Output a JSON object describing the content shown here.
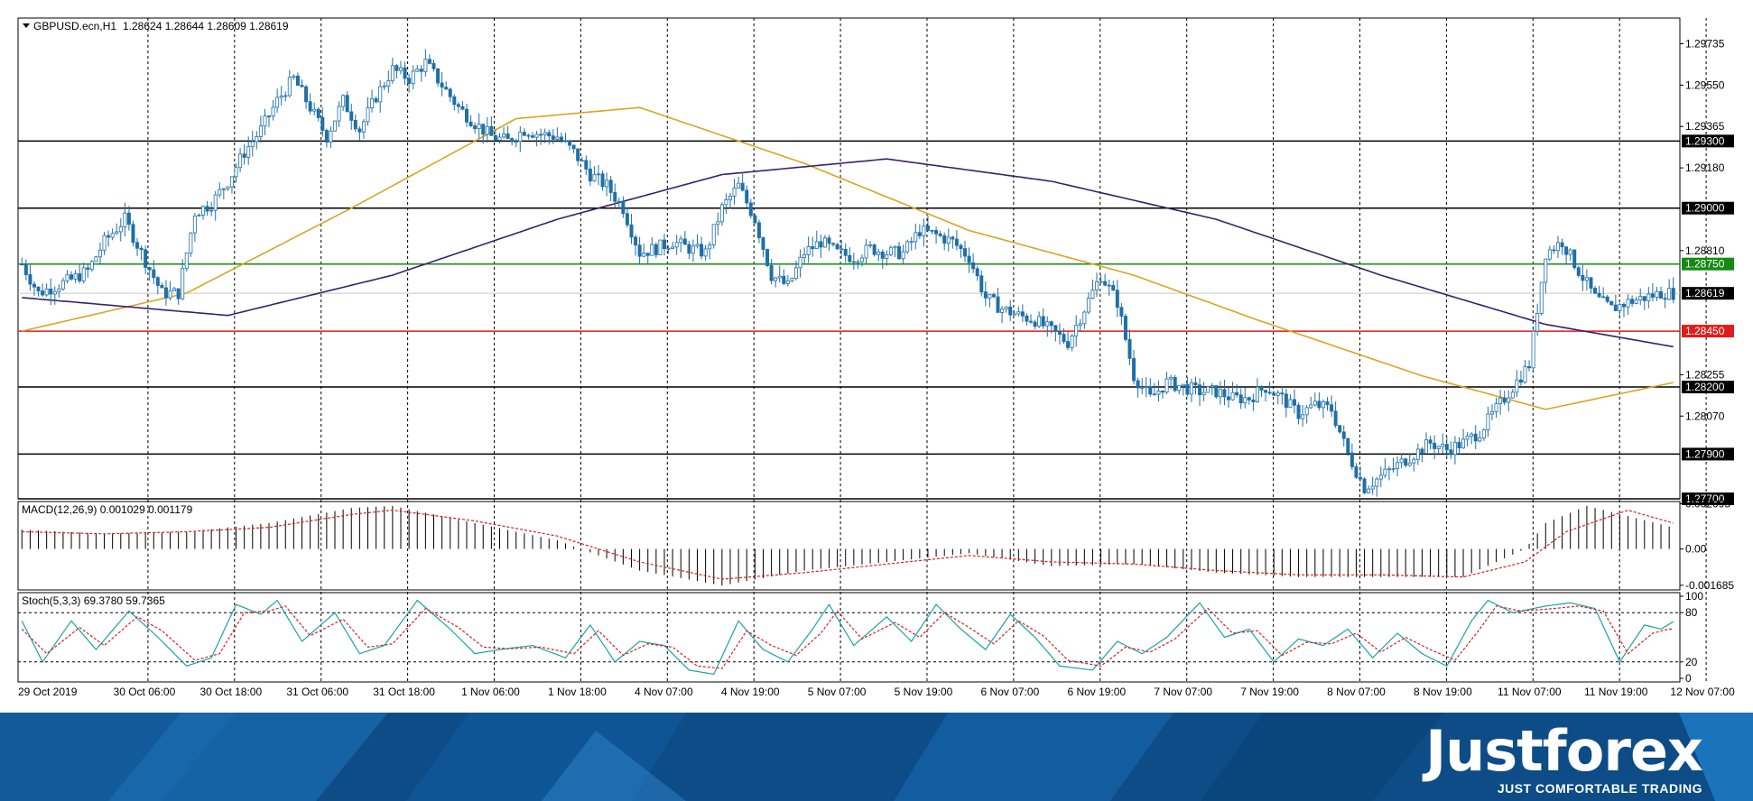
{
  "symbol_header": {
    "symbol": "GBPUSD.ecn,H1",
    "ohlc": "1.28624 1.28644 1.28609 1.28619"
  },
  "macd_header": "MACD(12,26,9) 0.001029 0.001179",
  "stoch_header": "Stoch(5,3,3) 69.3780 59.7365",
  "brand": {
    "name": "Justforex",
    "tagline": "JUST COMFORTABLE TRADING"
  },
  "colors": {
    "bull": "#ffffff",
    "bear": "#1f6fa8",
    "ma_fast": "#d9a521",
    "ma_slow": "#3b1f6e",
    "green_level": "#138a13",
    "red_level": "#e11b1b",
    "black_level": "#000000",
    "banner": "#0d4c86"
  },
  "chart_data": [
    {
      "type": "candlestick",
      "title": "GBPUSD.ecn,H1",
      "price_ticks": [
        "1.29735",
        "1.29550",
        "1.29365",
        "1.29180",
        "1.28810",
        "1.28255",
        "1.28070"
      ],
      "level_tags": [
        "1.29300",
        "1.29000",
        "1.28750",
        "1.28619",
        "1.28450",
        "1.28200",
        "1.27900",
        "1.27700"
      ],
      "ylim": [
        1.277,
        1.2985
      ],
      "x_ticks": [
        "29 Oct 2019",
        "30 Oct 06:00",
        "30 Oct 18:00",
        "31 Oct 06:00",
        "31 Oct 18:00",
        "1 Nov 06:00",
        "1 Nov 18:00",
        "4 Nov 07:00",
        "4 Nov 19:00",
        "5 Nov 07:00",
        "5 Nov 19:00",
        "6 Nov 07:00",
        "6 Nov 19:00",
        "7 Nov 07:00",
        "7 Nov 19:00",
        "8 Nov 07:00",
        "8 Nov 19:00",
        "11 Nov 07:00",
        "11 Nov 19:00",
        "12 Nov 07:00"
      ],
      "horizontal_levels": [
        {
          "price": 1.293,
          "color": "black"
        },
        {
          "price": 1.29,
          "color": "black"
        },
        {
          "price": 1.2875,
          "color": "green"
        },
        {
          "price": 1.2845,
          "color": "red"
        },
        {
          "price": 1.282,
          "color": "black"
        },
        {
          "price": 1.279,
          "color": "black"
        },
        {
          "price": 1.277,
          "color": "black"
        }
      ],
      "current_price": 1.28619,
      "close_path": [
        [
          0,
          1.2875
        ],
        [
          4,
          1.2862
        ],
        [
          8,
          1.2865
        ],
        [
          12,
          1.2868
        ],
        [
          16,
          1.2872
        ],
        [
          20,
          1.2885
        ],
        [
          25,
          1.2895
        ],
        [
          29,
          1.288
        ],
        [
          34,
          1.2862
        ],
        [
          38,
          1.2862
        ],
        [
          42,
          1.2898
        ],
        [
          46,
          1.2902
        ],
        [
          50,
          1.2912
        ],
        [
          54,
          1.2925
        ],
        [
          58,
          1.2935
        ],
        [
          62,
          1.2948
        ],
        [
          66,
          1.2958
        ],
        [
          70,
          1.2945
        ],
        [
          74,
          1.2932
        ],
        [
          78,
          1.2948
        ],
        [
          82,
          1.2935
        ],
        [
          86,
          1.295
        ],
        [
          90,
          1.2962
        ],
        [
          94,
          1.2958
        ],
        [
          98,
          1.2965
        ],
        [
          102,
          1.2955
        ],
        [
          106,
          1.2945
        ],
        [
          110,
          1.2938
        ],
        [
          114,
          1.2932
        ],
        [
          118,
          1.293
        ],
        [
          122,
          1.2935
        ],
        [
          126,
          1.2933
        ],
        [
          130,
          1.2932
        ],
        [
          134,
          1.2925
        ],
        [
          138,
          1.2915
        ],
        [
          142,
          1.291
        ],
        [
          146,
          1.29
        ],
        [
          150,
          1.288
        ],
        [
          154,
          1.2882
        ],
        [
          158,
          1.2885
        ],
        [
          162,
          1.2882
        ],
        [
          166,
          1.288
        ],
        [
          170,
          1.29
        ],
        [
          174,
          1.291
        ],
        [
          178,
          1.2895
        ],
        [
          182,
          1.287
        ],
        [
          186,
          1.2865
        ],
        [
          190,
          1.288
        ],
        [
          194,
          1.2885
        ],
        [
          198,
          1.288
        ],
        [
          202,
          1.2878
        ],
        [
          206,
          1.2882
        ],
        [
          210,
          1.288
        ],
        [
          214,
          1.288
        ],
        [
          218,
          1.289
        ],
        [
          222,
          1.2888
        ],
        [
          226,
          1.2885
        ],
        [
          230,
          1.2878
        ],
        [
          234,
          1.286
        ],
        [
          238,
          1.2855
        ],
        [
          242,
          1.2852
        ],
        [
          246,
          1.285
        ],
        [
          250,
          1.2845
        ],
        [
          254,
          1.284
        ],
        [
          258,
          1.2855
        ],
        [
          262,
          1.287
        ],
        [
          266,
          1.2858
        ],
        [
          270,
          1.2825
        ],
        [
          274,
          1.2815
        ],
        [
          278,
          1.2822
        ],
        [
          282,
          1.282
        ],
        [
          286,
          1.2818
        ],
        [
          290,
          1.2818
        ],
        [
          294,
          1.2815
        ],
        [
          298,
          1.2815
        ],
        [
          302,
          1.282
        ],
        [
          306,
          1.2815
        ],
        [
          310,
          1.2808
        ],
        [
          314,
          1.2812
        ],
        [
          318,
          1.281
        ],
        [
          322,
          1.279
        ],
        [
          326,
          1.2775
        ],
        [
          330,
          1.278
        ],
        [
          334,
          1.2785
        ],
        [
          338,
          1.279
        ],
        [
          342,
          1.2795
        ],
        [
          346,
          1.2792
        ],
        [
          350,
          1.2795
        ],
        [
          354,
          1.28
        ],
        [
          358,
          1.281
        ],
        [
          362,
          1.282
        ],
        [
          366,
          1.283
        ],
        [
          370,
          1.288
        ],
        [
          374,
          1.2885
        ],
        [
          378,
          1.2872
        ],
        [
          382,
          1.286
        ],
        [
          386,
          1.2855
        ],
        [
          390,
          1.2858
        ],
        [
          394,
          1.286
        ],
        [
          398,
          1.2862
        ],
        [
          401,
          1.2862
        ]
      ],
      "ma_fast": [
        [
          0,
          1.2845
        ],
        [
          40,
          1.2862
        ],
        [
          80,
          1.29
        ],
        [
          120,
          1.294
        ],
        [
          150,
          1.2945
        ],
        [
          190,
          1.292
        ],
        [
          230,
          1.289
        ],
        [
          270,
          1.287
        ],
        [
          300,
          1.285
        ],
        [
          340,
          1.2825
        ],
        [
          370,
          1.281
        ],
        [
          401,
          1.2822
        ]
      ],
      "ma_slow": [
        [
          0,
          1.286
        ],
        [
          50,
          1.2852
        ],
        [
          90,
          1.287
        ],
        [
          130,
          1.2895
        ],
        [
          170,
          1.2915
        ],
        [
          210,
          1.2922
        ],
        [
          250,
          1.2912
        ],
        [
          290,
          1.2895
        ],
        [
          330,
          1.287
        ],
        [
          370,
          1.2848
        ],
        [
          401,
          1.2838
        ]
      ]
    },
    {
      "type": "histogram",
      "title": "MACD(12,26,9) 0.001029 0.001179",
      "ticks": [
        "0.002095",
        "0.00",
        "-0.001685"
      ],
      "ylim": [
        -0.0019,
        0.0022
      ],
      "histogram": [
        [
          0,
          0.0009
        ],
        [
          20,
          0.0007
        ],
        [
          40,
          0.0008
        ],
        [
          60,
          0.0012
        ],
        [
          80,
          0.0019
        ],
        [
          90,
          0.002
        ],
        [
          110,
          0.0012
        ],
        [
          130,
          0.0004
        ],
        [
          150,
          -0.001
        ],
        [
          170,
          -0.0017
        ],
        [
          190,
          -0.001
        ],
        [
          210,
          -0.0006
        ],
        [
          230,
          -0.0002
        ],
        [
          250,
          -0.0008
        ],
        [
          270,
          -0.0007
        ],
        [
          290,
          -0.0011
        ],
        [
          310,
          -0.0013
        ],
        [
          330,
          -0.0013
        ],
        [
          350,
          -0.0013
        ],
        [
          365,
          0.0
        ],
        [
          370,
          0.0012
        ],
        [
          380,
          0.002
        ],
        [
          401,
          0.001
        ]
      ],
      "signal": [
        [
          0,
          0.0008
        ],
        [
          20,
          0.0007
        ],
        [
          40,
          0.0008
        ],
        [
          60,
          0.001
        ],
        [
          80,
          0.0016
        ],
        [
          90,
          0.0018
        ],
        [
          110,
          0.0013
        ],
        [
          130,
          0.0006
        ],
        [
          150,
          -0.0006
        ],
        [
          170,
          -0.0014
        ],
        [
          190,
          -0.0011
        ],
        [
          210,
          -0.0007
        ],
        [
          230,
          -0.0003
        ],
        [
          250,
          -0.0006
        ],
        [
          270,
          -0.0007
        ],
        [
          290,
          -0.001
        ],
        [
          310,
          -0.0012
        ],
        [
          330,
          -0.0012
        ],
        [
          350,
          -0.0013
        ],
        [
          365,
          -0.0006
        ],
        [
          375,
          0.0008
        ],
        [
          390,
          0.0018
        ],
        [
          401,
          0.0012
        ]
      ]
    },
    {
      "type": "line",
      "title": "Stoch(5,3,3) 69.3780 59.7365",
      "ticks": [
        "100",
        "80",
        "20",
        "0"
      ],
      "ylim": [
        0,
        100
      ],
      "levels": [
        80,
        20
      ],
      "main": [
        [
          0,
          70
        ],
        [
          5,
          20
        ],
        [
          12,
          70
        ],
        [
          18,
          35
        ],
        [
          26,
          82
        ],
        [
          32,
          55
        ],
        [
          40,
          15
        ],
        [
          46,
          25
        ],
        [
          52,
          90
        ],
        [
          58,
          78
        ],
        [
          62,
          95
        ],
        [
          68,
          45
        ],
        [
          76,
          80
        ],
        [
          82,
          30
        ],
        [
          88,
          40
        ],
        [
          96,
          95
        ],
        [
          104,
          60
        ],
        [
          110,
          30
        ],
        [
          116,
          35
        ],
        [
          124,
          40
        ],
        [
          132,
          25
        ],
        [
          138,
          65
        ],
        [
          144,
          20
        ],
        [
          150,
          45
        ],
        [
          156,
          40
        ],
        [
          162,
          10
        ],
        [
          168,
          5
        ],
        [
          174,
          70
        ],
        [
          180,
          35
        ],
        [
          186,
          20
        ],
        [
          192,
          60
        ],
        [
          196,
          90
        ],
        [
          202,
          40
        ],
        [
          210,
          75
        ],
        [
          216,
          45
        ],
        [
          222,
          90
        ],
        [
          228,
          60
        ],
        [
          234,
          35
        ],
        [
          240,
          78
        ],
        [
          246,
          50
        ],
        [
          252,
          15
        ],
        [
          260,
          10
        ],
        [
          266,
          45
        ],
        [
          272,
          30
        ],
        [
          278,
          50
        ],
        [
          286,
          92
        ],
        [
          292,
          50
        ],
        [
          298,
          60
        ],
        [
          304,
          20
        ],
        [
          310,
          48
        ],
        [
          316,
          40
        ],
        [
          322,
          60
        ],
        [
          328,
          25
        ],
        [
          334,
          55
        ],
        [
          340,
          30
        ],
        [
          346,
          15
        ],
        [
          352,
          70
        ],
        [
          356,
          95
        ],
        [
          362,
          80
        ],
        [
          370,
          88
        ],
        [
          376,
          92
        ],
        [
          382,
          85
        ],
        [
          388,
          20
        ],
        [
          394,
          65
        ],
        [
          398,
          60
        ],
        [
          401,
          69
        ]
      ],
      "signal": [
        [
          0,
          60
        ],
        [
          6,
          30
        ],
        [
          14,
          62
        ],
        [
          20,
          40
        ],
        [
          28,
          75
        ],
        [
          34,
          58
        ],
        [
          42,
          22
        ],
        [
          48,
          30
        ],
        [
          54,
          80
        ],
        [
          60,
          82
        ],
        [
          64,
          88
        ],
        [
          70,
          52
        ],
        [
          78,
          72
        ],
        [
          84,
          38
        ],
        [
          90,
          42
        ],
        [
          98,
          85
        ],
        [
          106,
          62
        ],
        [
          112,
          38
        ],
        [
          118,
          36
        ],
        [
          126,
          38
        ],
        [
          134,
          30
        ],
        [
          140,
          58
        ],
        [
          146,
          28
        ],
        [
          152,
          42
        ],
        [
          158,
          38
        ],
        [
          164,
          15
        ],
        [
          170,
          12
        ],
        [
          176,
          58
        ],
        [
          182,
          40
        ],
        [
          188,
          28
        ],
        [
          194,
          55
        ],
        [
          198,
          82
        ],
        [
          204,
          48
        ],
        [
          212,
          68
        ],
        [
          218,
          50
        ],
        [
          224,
          80
        ],
        [
          230,
          62
        ],
        [
          236,
          42
        ],
        [
          242,
          70
        ],
        [
          248,
          52
        ],
        [
          254,
          22
        ],
        [
          262,
          15
        ],
        [
          268,
          38
        ],
        [
          274,
          32
        ],
        [
          280,
          48
        ],
        [
          288,
          85
        ],
        [
          294,
          55
        ],
        [
          300,
          58
        ],
        [
          306,
          28
        ],
        [
          312,
          44
        ],
        [
          318,
          42
        ],
        [
          324,
          55
        ],
        [
          330,
          32
        ],
        [
          336,
          50
        ],
        [
          342,
          35
        ],
        [
          348,
          22
        ],
        [
          354,
          60
        ],
        [
          358,
          88
        ],
        [
          364,
          82
        ],
        [
          372,
          85
        ],
        [
          378,
          88
        ],
        [
          384,
          82
        ],
        [
          390,
          30
        ],
        [
          396,
          55
        ],
        [
          400,
          60
        ],
        [
          401,
          60
        ]
      ]
    }
  ]
}
